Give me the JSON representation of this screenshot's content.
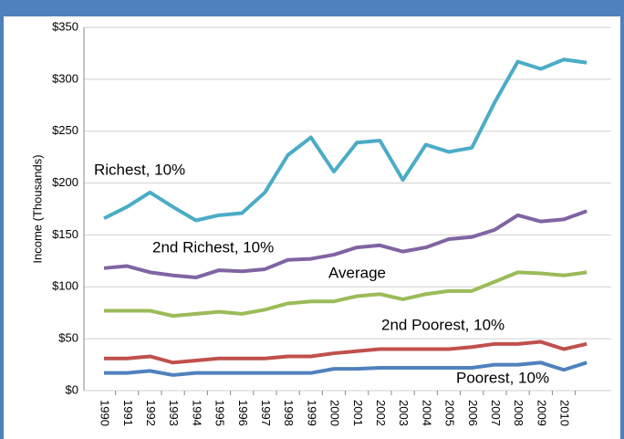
{
  "chart_data": {
    "type": "line",
    "y_label": "Income (Thousands)",
    "categories": [
      "1990",
      "1991",
      "1992",
      "1993",
      "1994",
      "1995",
      "1996",
      "1997",
      "1998",
      "1999",
      "2000",
      "2001",
      "2002",
      "2003",
      "2004",
      "2005",
      "2006",
      "2007",
      "2008",
      "2009",
      "2010",
      null
    ],
    "series": [
      {
        "name": "Richest, 10%",
        "color": "#4bacc6",
        "values": [
          166,
          177,
          191,
          177,
          164,
          169,
          171,
          191,
          227,
          244,
          211,
          239,
          241,
          203,
          237,
          230,
          234,
          278,
          317,
          310,
          319,
          316
        ]
      },
      {
        "name": "2nd Richest, 10%",
        "color": "#8064a2",
        "values": [
          118,
          120,
          114,
          111,
          109,
          116,
          115,
          117,
          126,
          127,
          131,
          138,
          140,
          134,
          138,
          146,
          148,
          155,
          169,
          163,
          165,
          173
        ]
      },
      {
        "name": "Average",
        "color": "#9bbb59",
        "values": [
          77,
          77,
          77,
          72,
          74,
          76,
          74,
          78,
          84,
          86,
          86,
          91,
          93,
          88,
          93,
          96,
          96,
          105,
          114,
          113,
          111,
          114
        ]
      },
      {
        "name": "2nd Poorest, 10%",
        "color": "#c0504d",
        "values": [
          31,
          31,
          33,
          27,
          29,
          31,
          31,
          31,
          33,
          33,
          36,
          38,
          40,
          40,
          40,
          40,
          42,
          45,
          45,
          47,
          40,
          45
        ]
      },
      {
        "name": "Poorest, 10%",
        "color": "#4f81bd",
        "values": [
          17,
          17,
          19,
          15,
          17,
          17,
          17,
          17,
          17,
          17,
          21,
          21,
          22,
          22,
          22,
          22,
          22,
          25,
          25,
          27,
          20,
          27
        ]
      }
    ],
    "ylim": [
      0,
      350
    ],
    "yticks": [
      {
        "value": 0,
        "label": "$0"
      },
      {
        "value": 50,
        "label": "$50"
      },
      {
        "value": 100,
        "label": "$100"
      },
      {
        "value": 150,
        "label": "$150"
      },
      {
        "value": 200,
        "label": "$200"
      },
      {
        "value": 250,
        "label": "$250"
      },
      {
        "value": 300,
        "label": "$300"
      },
      {
        "value": 350,
        "label": "$350"
      }
    ],
    "grid": true
  }
}
